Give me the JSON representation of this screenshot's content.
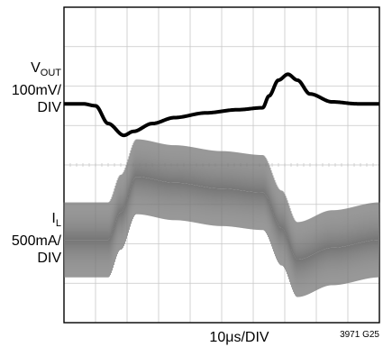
{
  "chart_data": {
    "type": "line",
    "grid": true,
    "divisions": {
      "x": 10,
      "y": 8
    },
    "xlabel": "10μs/DIV",
    "figure_code": "3971 G25",
    "x_unit_per_div": "10μs",
    "series": [
      {
        "name": "VOUT",
        "label_main": "V",
        "label_sub": "OUT",
        "scale_line": "100mV/",
        "scale_line2": "DIV",
        "color": "#000000",
        "x_div": [
          0,
          0.6,
          1.0,
          1.4,
          1.9,
          2.2,
          2.8,
          3.5,
          4.5,
          5.5,
          6.3,
          6.5,
          6.8,
          7.1,
          7.4,
          7.8,
          8.5,
          9.3,
          10
        ],
        "y_div": [
          2.45,
          2.45,
          2.5,
          2.95,
          3.25,
          3.15,
          2.95,
          2.8,
          2.68,
          2.6,
          2.55,
          2.25,
          1.85,
          1.7,
          1.85,
          2.2,
          2.4,
          2.45,
          2.45
        ]
      },
      {
        "name": "IL",
        "label_main": "I",
        "label_sub": "L",
        "scale_line": "500mA/",
        "scale_line2": "DIV",
        "color": "#777777",
        "ripple_pp_div": 1.9,
        "x_div": [
          0,
          1.4,
          1.8,
          2.3,
          3.5,
          5.0,
          6.3,
          6.9,
          7.4,
          8.5,
          10
        ],
        "y_div": [
          5.9,
          5.9,
          5.2,
          4.3,
          4.45,
          4.6,
          4.7,
          5.6,
          6.4,
          6.1,
          5.9
        ]
      }
    ]
  }
}
